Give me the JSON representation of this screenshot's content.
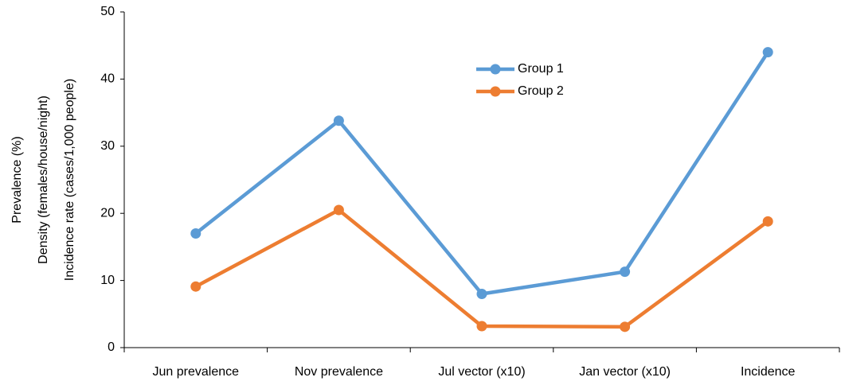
{
  "chart_data": {
    "type": "line",
    "y_label": [
      "Prevalence (%)",
      "Density (females/house/night)",
      "Incidence rate (cases/1,000 people)"
    ],
    "categories": [
      "Jun prevalence",
      "Nov prevalence",
      "Jul vector (x10)",
      "Jan vector (x10)",
      "Incidence"
    ],
    "series": [
      {
        "name": "Group 1",
        "color": "#5b9bd5",
        "values": [
          17,
          33.8,
          8,
          11.3,
          44
        ]
      },
      {
        "name": "Group 2",
        "color": "#ed7d31",
        "values": [
          9.1,
          20.5,
          3.2,
          3.1,
          18.8
        ]
      }
    ],
    "ylim": [
      0,
      50
    ],
    "yticks": [
      0,
      10,
      20,
      30,
      40,
      50
    ],
    "grid": false
  }
}
